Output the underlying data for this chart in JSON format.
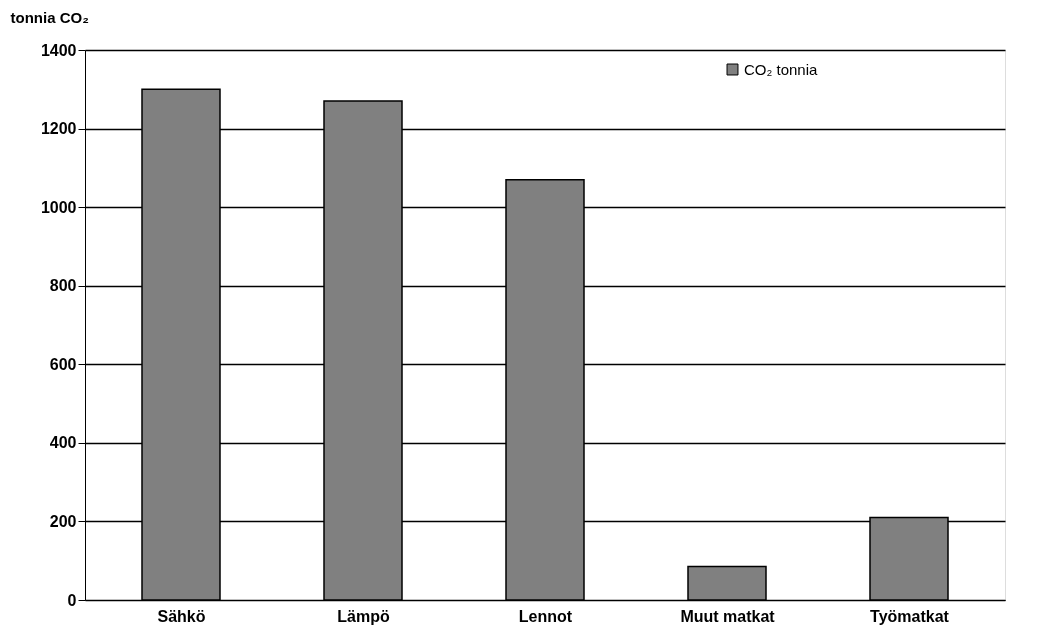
{
  "chart_data": {
    "type": "bar",
    "ylabel": "tonnia CO₂",
    "categories": [
      "Sähkö",
      "Lämpö",
      "Lennot",
      "Muut matkat",
      "Työmatkat"
    ],
    "series": [
      {
        "name": "CO₂ tonnia",
        "color": "#808080",
        "values": [
          1300,
          1270,
          1070,
          85,
          210
        ]
      }
    ],
    "ylim": [
      0,
      1400
    ],
    "yticks": [
      0,
      200,
      400,
      600,
      800,
      1000,
      1200,
      1400
    ],
    "grid": "y",
    "legend": "top right"
  }
}
